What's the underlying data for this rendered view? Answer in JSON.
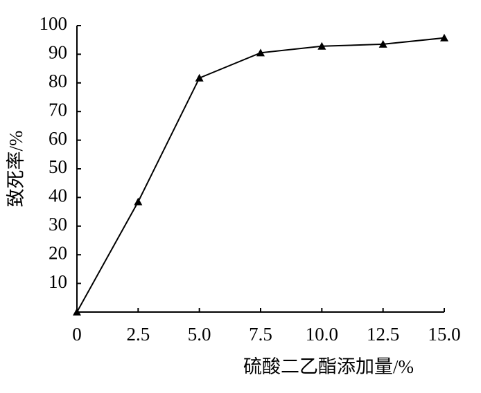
{
  "chart_data": {
    "type": "line",
    "x_label": "硫酸二乙酯添加量/%",
    "y_label": "致死率/%",
    "x": [
      0,
      2.5,
      5,
      7.5,
      10,
      12.5,
      15
    ],
    "values": [
      0,
      38.5,
      81.7,
      90.5,
      92.8,
      93.5,
      95.7
    ],
    "color": "#000000",
    "marker": "triangle",
    "xlim": [
      0,
      15
    ],
    "xticks": [
      0,
      2.5,
      {
        "value": 5,
        "label": "5.0"
      },
      7.5,
      {
        "value": 10,
        "label": "10.0"
      },
      12.5,
      {
        "value": 15,
        "label": "15.0"
      }
    ],
    "ylim": [
      0,
      100
    ],
    "yticks": [
      10,
      20,
      30,
      40,
      50,
      60,
      70,
      80,
      90,
      100
    ],
    "grid": false
  }
}
